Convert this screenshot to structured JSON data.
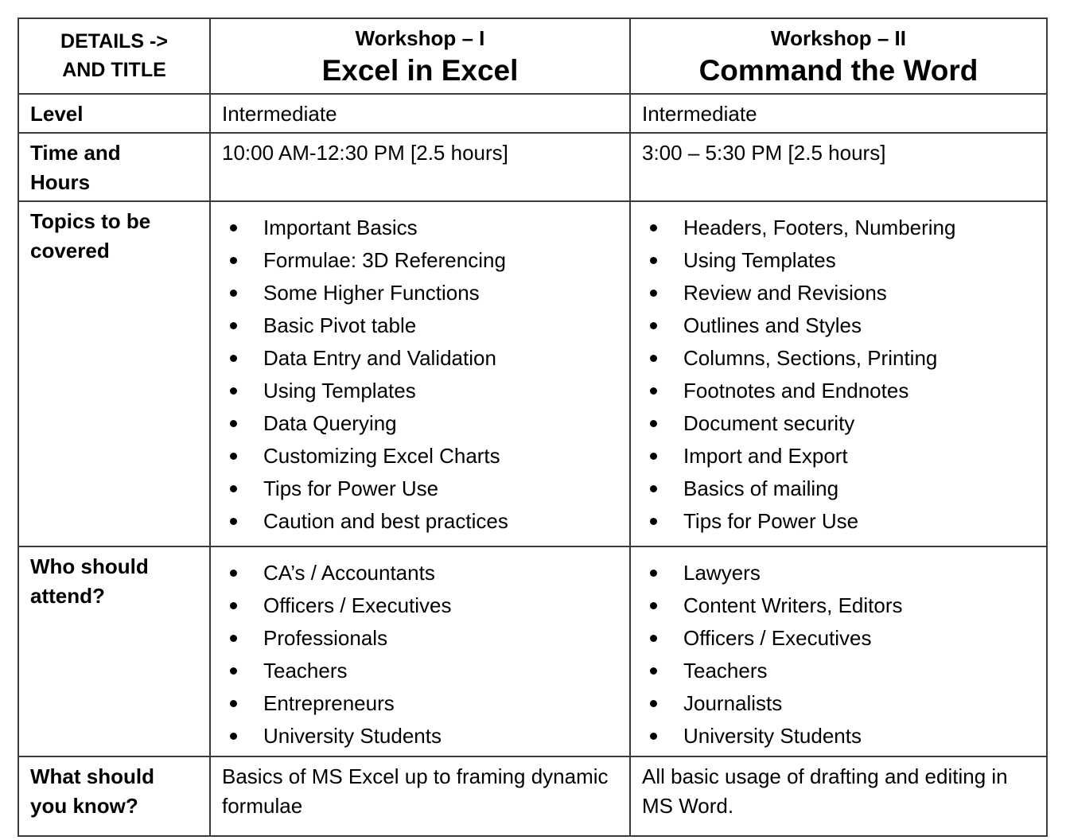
{
  "colors": {
    "background": "#ffffff",
    "border": "#3b3b3b",
    "text": "#000000"
  },
  "table": {
    "header": {
      "corner": "DETAILS ->\nAND TITLE",
      "workshops": [
        {
          "label": "Workshop – I",
          "title": "Excel in Excel"
        },
        {
          "label": "Workshop – II",
          "title": "Command the Word"
        }
      ]
    },
    "level": {
      "label": "Level",
      "workshop1": "Intermediate",
      "workshop2": "Intermediate"
    },
    "time": {
      "label": "Time and\nHours",
      "workshop1": "10:00 AM-12:30 PM [2.5 hours]",
      "workshop2": "3:00 – 5:30 PM [2.5 hours]"
    },
    "topics": {
      "label": "Topics to be\ncovered",
      "workshop1": [
        "Important Basics",
        "Formulae: 3D Referencing",
        "Some Higher Functions",
        "Basic Pivot table",
        "Data Entry and Validation",
        "Using Templates",
        "Data Querying",
        "Customizing Excel Charts",
        "Tips for Power Use",
        "Caution and best practices"
      ],
      "workshop2": [
        "Headers, Footers, Numbering",
        "Using Templates",
        "Review and Revisions",
        "Outlines and Styles",
        "Columns, Sections, Printing",
        "Footnotes and Endnotes",
        "Document security",
        "Import and Export",
        "Basics of mailing",
        "Tips for Power Use"
      ]
    },
    "attendees": {
      "label": "Who should\nattend?",
      "workshop1": [
        "CA’s / Accountants",
        "Officers / Executives",
        "Professionals",
        "Teachers",
        "Entrepreneurs",
        "University Students"
      ],
      "workshop2": [
        "Lawyers",
        "Content Writers, Editors",
        "Officers / Executives",
        "Teachers",
        "Journalists",
        "University Students"
      ]
    },
    "prerequisites": {
      "label": "What should\nyou know?",
      "workshop1": "Basics of MS Excel up to framing dynamic formulae",
      "workshop2": "All basic usage of drafting and editing in MS Word."
    }
  }
}
